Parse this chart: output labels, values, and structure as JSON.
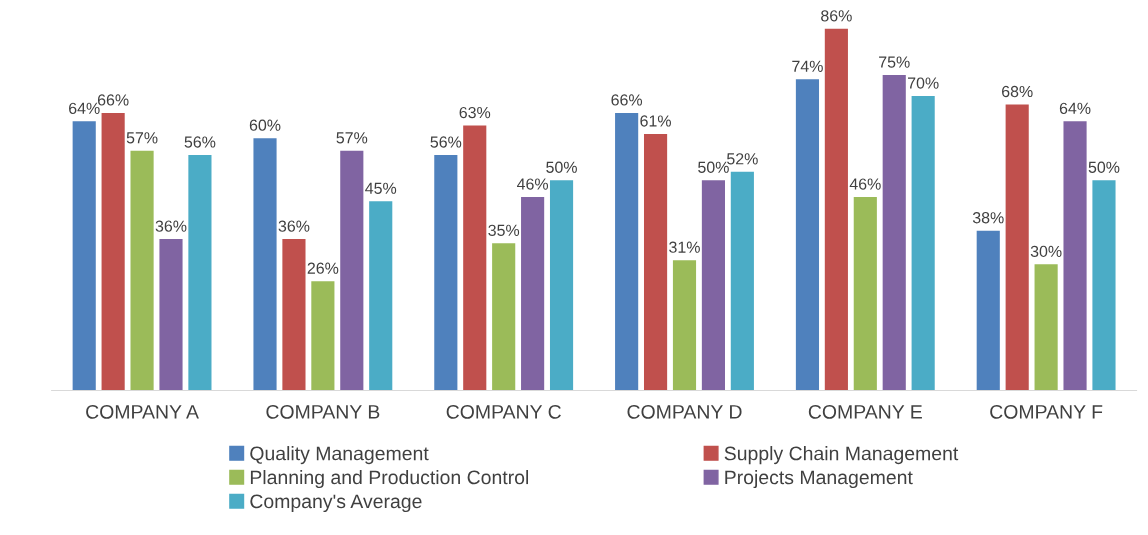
{
  "chart_data": {
    "type": "bar",
    "categories": [
      "COMPANY A",
      "COMPANY B",
      "COMPANY C",
      "COMPANY D",
      "COMPANY E",
      "COMPANY F"
    ],
    "series": [
      {
        "name": "Quality Management",
        "color": "#4f81bd",
        "values": [
          64,
          60,
          56,
          66,
          74,
          38
        ],
        "value_labels": [
          "64%",
          "60%",
          "56%",
          "66%",
          "74%",
          "38%"
        ]
      },
      {
        "name": "Supply Chain Management",
        "color": "#c0504d",
        "values": [
          66,
          36,
          63,
          61,
          86,
          68
        ],
        "value_labels": [
          "66%",
          "36%",
          "63%",
          "61%",
          "86%",
          "68%"
        ]
      },
      {
        "name": "Planning and Production Control",
        "color": "#9bbb59",
        "values": [
          57,
          26,
          35,
          31,
          46,
          30
        ],
        "value_labels": [
          "57%",
          "26%",
          "35%",
          "31%",
          "46%",
          "30%"
        ]
      },
      {
        "name": "Projects Management",
        "color": "#8064a2",
        "values": [
          36,
          57,
          46,
          50,
          75,
          64
        ],
        "value_labels": [
          "36%",
          "57%",
          "46%",
          "50%",
          "75%",
          "64%"
        ]
      },
      {
        "name": "Company's Average",
        "color": "#4bacc6",
        "values": [
          56,
          45,
          50,
          52,
          70,
          50
        ],
        "value_labels": [
          "56%",
          "45%",
          "50%",
          "52%",
          "70%",
          "50%"
        ]
      }
    ],
    "grid": false,
    "legend": "bottom"
  }
}
